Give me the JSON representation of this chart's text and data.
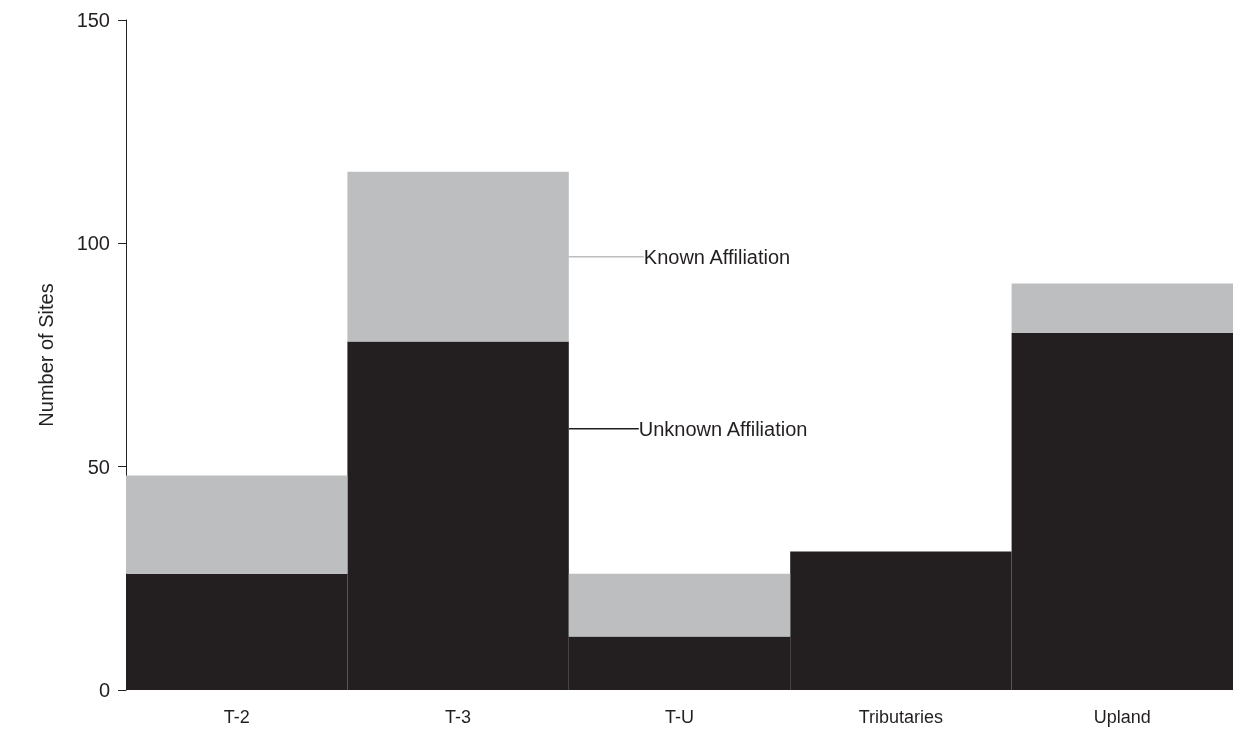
{
  "chart_data": {
    "type": "bar",
    "stacked": true,
    "ylabel": "Number of Sites",
    "categories": [
      "T-2",
      "T-3",
      "T-U",
      "Tributaries",
      "Upland"
    ],
    "series": [
      {
        "name": "Unknown Affiliation",
        "color": "#231f20",
        "values": [
          26,
          78,
          12,
          31,
          80
        ]
      },
      {
        "name": "Known Affiliation",
        "color": "#bcbec0",
        "values": [
          22,
          38,
          14,
          0,
          11
        ]
      }
    ],
    "ylim": [
      0,
      150
    ],
    "yticks": [
      0,
      50,
      100,
      150
    ],
    "grid": false,
    "legend": "top"
  }
}
